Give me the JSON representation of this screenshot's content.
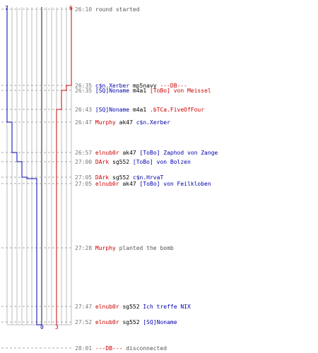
{
  "scores": {
    "ct_start": "7",
    "t_start": "6",
    "ct_end": "0",
    "t_end": "3"
  },
  "colors": {
    "t": "#cc0000",
    "ct": "#0000aa",
    "grid": "#bdbdbd",
    "dash": "#aaaaaa"
  },
  "events": [
    {
      "time": "26:10",
      "parts": [
        {
          "text": "round started",
          "team": "note"
        }
      ]
    },
    {
      "time": "26:35",
      "parts": [
        {
          "text": "c$n.Xerber",
          "team": "ct"
        },
        {
          "text": " mp5navy ",
          "team": "weapon"
        },
        {
          "text": "---DB---",
          "team": "t"
        }
      ]
    },
    {
      "time": "26:35",
      "parts": [
        {
          "text": "[SQ]Noname",
          "team": "ct"
        },
        {
          "text": " m4a1 ",
          "team": "weapon"
        },
        {
          "text": "[ToBo] von Meissel",
          "team": "t"
        }
      ]
    },
    {
      "time": "26:43",
      "parts": [
        {
          "text": "[SQ]Noname",
          "team": "ct"
        },
        {
          "text": " m4a1 ",
          "team": "weapon"
        },
        {
          "text": ".bTCa.FiveOfFour",
          "team": "t"
        }
      ]
    },
    {
      "time": "26:47",
      "parts": [
        {
          "text": "Murphy",
          "team": "t"
        },
        {
          "text": " ak47 ",
          "team": "weapon"
        },
        {
          "text": "c$n.Xerber",
          "team": "ct"
        }
      ]
    },
    {
      "time": "26:57",
      "parts": [
        {
          "text": "elnub0r",
          "team": "t"
        },
        {
          "text": " ak47 ",
          "team": "weapon"
        },
        {
          "text": "[ToBo] Zaphod von Zange",
          "team": "ct"
        }
      ]
    },
    {
      "time": "27:00",
      "parts": [
        {
          "text": "DArk",
          "team": "t"
        },
        {
          "text": " sg552 ",
          "team": "weapon"
        },
        {
          "text": "[ToBo] von Bolzen",
          "team": "ct"
        }
      ]
    },
    {
      "time": "27:05",
      "parts": [
        {
          "text": "DArk",
          "team": "t"
        },
        {
          "text": " sg552 ",
          "team": "weapon"
        },
        {
          "text": "c$n.HrvaT",
          "team": "ct"
        }
      ]
    },
    {
      "time": "27:05",
      "parts": [
        {
          "text": "elnub0r",
          "team": "t"
        },
        {
          "text": " ak47 ",
          "team": "weapon"
        },
        {
          "text": "[ToBo] von Feilkloben",
          "team": "ct"
        }
      ]
    },
    {
      "time": "27:28",
      "parts": [
        {
          "text": "Murphy",
          "team": "t"
        },
        {
          "text": " planted the bomb",
          "team": "note"
        }
      ]
    },
    {
      "time": "27:47",
      "parts": [
        {
          "text": "elnub0r",
          "team": "t"
        },
        {
          "text": " sg552 ",
          "team": "weapon"
        },
        {
          "text": "Ich treffe NIX",
          "team": "ct"
        }
      ]
    },
    {
      "time": "27:52",
      "parts": [
        {
          "text": "elnub0r",
          "team": "t"
        },
        {
          "text": " sg552 ",
          "team": "weapon"
        },
        {
          "text": "[SQ]Noname",
          "team": "ct"
        }
      ]
    },
    {
      "time": "28:01",
      "parts": [
        {
          "text": "---DB---",
          "team": "t"
        },
        {
          "text": " disconnected",
          "team": "note"
        }
      ]
    }
  ]
}
